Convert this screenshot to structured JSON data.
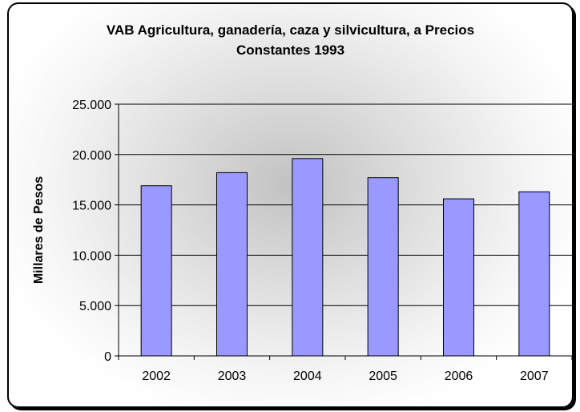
{
  "chart_data": {
    "type": "bar",
    "title_lines": [
      "VAB Agricultura, ganadería, caza y silvicultura, a Precios",
      "Constantes 1993"
    ],
    "ylabel": "Millares de Pesos",
    "xlabel": "",
    "categories": [
      "2002",
      "2003",
      "2004",
      "2005",
      "2006",
      "2007"
    ],
    "values": [
      16900,
      18200,
      19600,
      17700,
      15600,
      16300
    ],
    "ylim": [
      0,
      25000
    ],
    "yticks": [
      0,
      5000,
      10000,
      15000,
      20000,
      25000
    ],
    "ytick_labels": [
      "0",
      "5.000",
      "10.000",
      "15.000",
      "20.000",
      "25.000"
    ],
    "grid": true,
    "legend": "none",
    "bar_color": "#9999ff",
    "bar_edge_color": "#000000"
  }
}
